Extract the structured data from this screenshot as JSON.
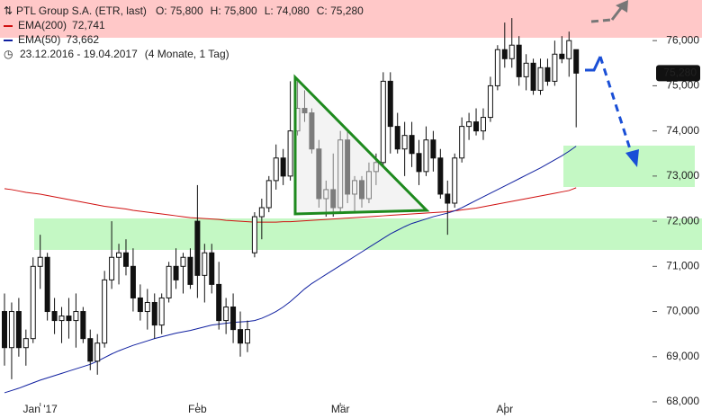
{
  "chart_data": {
    "type": "candlestick",
    "header": {
      "title": "PTL Group S.A. (ETR, last)",
      "ohlc": [
        "O: 75,800",
        "H: 75,800",
        "L: 74,080",
        "C: 75,280"
      ],
      "date_range": "23.12.2016 - 19.04.2017",
      "period": "(4 Monate, 1 Tag)"
    },
    "categories": [
      null,
      null,
      null,
      null,
      null,
      "Jan '17",
      null,
      null,
      null,
      null,
      null,
      null,
      null,
      null,
      null,
      null,
      null,
      null,
      null,
      null,
      null,
      null,
      null,
      null,
      null,
      null,
      null,
      "Feb",
      null,
      null,
      null,
      null,
      null,
      null,
      null,
      null,
      null,
      null,
      null,
      null,
      null,
      null,
      null,
      null,
      null,
      null,
      null,
      "Mär",
      null,
      null,
      null,
      null,
      null,
      null,
      null,
      null,
      null,
      null,
      null,
      null,
      null,
      null,
      null,
      null,
      null,
      null,
      null,
      null,
      null,
      null,
      "Apr",
      null,
      null,
      null,
      null,
      null,
      null,
      null,
      null,
      null,
      null
    ],
    "open": [
      70.0,
      69.2,
      70.0,
      69.2,
      69.4,
      71.0,
      71.2,
      70.0,
      69.8,
      69.9,
      69.8,
      70.0,
      69.4,
      68.9,
      69.3,
      70.7,
      71.2,
      71.3,
      71.0,
      70.3,
      70.0,
      70.2,
      69.7,
      70.3,
      71.0,
      71.0,
      71.2,
      72.0,
      70.8,
      71.3,
      70.6,
      69.8,
      70.1,
      69.6,
      69.3,
      71.3,
      72.1,
      72.3,
      72.9,
      73.4,
      73.0,
      74.0,
      74.5,
      74.4,
      73.6,
      72.5,
      72.7,
      72.3,
      73.8,
      72.6,
      72.9,
      72.5,
      73.1,
      73.3,
      75.1,
      74.1,
      73.6,
      73.9,
      73.5,
      73.1,
      73.8,
      73.4,
      72.6,
      72.4,
      73.4,
      74.1,
      74.2,
      74.0,
      74.3,
      75.0,
      75.8,
      75.6,
      75.9,
      75.2,
      75.5,
      74.9,
      75.4,
      75.1,
      75.7,
      75.6,
      75.8
    ],
    "high": [
      70.4,
      70.2,
      70.3,
      69.6,
      71.2,
      71.7,
      71.3,
      70.3,
      70.1,
      70.3,
      70.4,
      70.1,
      69.6,
      69.5,
      70.9,
      72.0,
      71.5,
      71.6,
      71.4,
      70.6,
      70.5,
      70.4,
      70.4,
      71.1,
      71.4,
      71.3,
      71.4,
      72.8,
      71.5,
      71.5,
      71.1,
      70.3,
      70.4,
      70.0,
      69.8,
      72.2,
      72.5,
      73.0,
      73.7,
      73.6,
      75.1,
      75.1,
      74.9,
      74.5,
      73.8,
      72.9,
      73.5,
      74.0,
      74.0,
      73.0,
      73.0,
      73.3,
      73.5,
      75.3,
      75.3,
      74.4,
      74.2,
      74.2,
      73.8,
      74.1,
      74.0,
      73.6,
      72.9,
      73.5,
      74.3,
      74.4,
      74.5,
      74.5,
      75.2,
      75.9,
      76.4,
      76.5,
      76.1,
      75.7,
      75.6,
      75.6,
      75.6,
      76.0,
      76.1,
      76.2,
      75.8
    ],
    "low": [
      68.8,
      68.5,
      69.0,
      68.8,
      69.3,
      70.5,
      69.8,
      69.5,
      69.3,
      69.4,
      69.2,
      69.3,
      68.7,
      68.6,
      69.2,
      70.5,
      70.6,
      70.8,
      70.0,
      69.8,
      69.6,
      69.4,
      69.5,
      70.2,
      70.5,
      70.4,
      70.5,
      70.3,
      70.2,
      70.4,
      69.6,
      69.5,
      69.3,
      69.0,
      69.1,
      71.2,
      71.6,
      72.2,
      72.7,
      72.8,
      72.9,
      73.9,
      74.2,
      73.5,
      72.3,
      72.1,
      72.1,
      72.2,
      72.4,
      72.2,
      72.3,
      72.4,
      72.8,
      73.2,
      73.5,
      73.5,
      73.0,
      73.2,
      72.8,
      73.0,
      73.1,
      72.5,
      71.7,
      72.3,
      73.3,
      73.8,
      73.9,
      73.8,
      74.2,
      74.9,
      75.4,
      75.4,
      75.0,
      74.9,
      74.8,
      74.8,
      75.0,
      75.0,
      75.5,
      75.2,
      74.08
    ],
    "close": [
      69.2,
      70.0,
      69.2,
      69.4,
      71.0,
      71.2,
      70.0,
      69.8,
      69.9,
      69.8,
      70.0,
      69.4,
      68.9,
      69.3,
      70.7,
      71.2,
      71.3,
      71.0,
      70.3,
      70.0,
      70.2,
      69.7,
      70.3,
      71.0,
      70.7,
      71.2,
      70.6,
      70.8,
      71.3,
      70.6,
      69.8,
      70.1,
      69.6,
      69.3,
      69.6,
      72.1,
      72.3,
      72.9,
      73.4,
      73.0,
      74.0,
      74.5,
      74.4,
      73.6,
      72.5,
      72.7,
      72.3,
      73.8,
      72.6,
      72.9,
      72.5,
      73.1,
      73.3,
      75.1,
      74.1,
      73.6,
      73.9,
      73.5,
      73.1,
      73.8,
      73.4,
      72.6,
      72.4,
      73.4,
      74.1,
      74.2,
      74.0,
      74.3,
      75.0,
      75.8,
      75.6,
      75.9,
      75.2,
      75.5,
      74.9,
      75.4,
      75.1,
      75.7,
      75.6,
      76.0,
      75.28
    ],
    "last_label": "75,280",
    "up_color": "#ffffff",
    "down_color": "#111111",
    "series": [
      {
        "name": "EMA(200)",
        "color": "#d01010",
        "value_label": "72,741",
        "values": [
          72.72,
          72.7,
          72.67,
          72.64,
          72.62,
          72.6,
          72.57,
          72.54,
          72.51,
          72.48,
          72.45,
          72.42,
          72.39,
          72.36,
          72.33,
          72.31,
          72.29,
          72.27,
          72.24,
          72.22,
          72.2,
          72.18,
          72.16,
          72.14,
          72.12,
          72.1,
          72.08,
          72.07,
          72.06,
          72.05,
          72.04,
          72.02,
          72.01,
          72.0,
          71.99,
          71.98,
          71.98,
          71.98,
          71.98,
          71.99,
          71.99,
          72.0,
          72.01,
          72.02,
          72.03,
          72.04,
          72.05,
          72.06,
          72.07,
          72.08,
          72.09,
          72.1,
          72.11,
          72.12,
          72.13,
          72.14,
          72.15,
          72.16,
          72.17,
          72.18,
          72.19,
          72.2,
          72.21,
          72.23,
          72.25,
          72.27,
          72.29,
          72.32,
          72.35,
          72.38,
          72.41,
          72.44,
          72.47,
          72.5,
          72.53,
          72.56,
          72.59,
          72.62,
          72.65,
          72.68,
          72.741
        ]
      },
      {
        "name": "EMA(50)",
        "color": "#1020a0",
        "value_label": "73,662",
        "values": [
          68.2,
          68.25,
          68.3,
          68.36,
          68.42,
          68.48,
          68.53,
          68.58,
          68.63,
          68.68,
          68.73,
          68.78,
          68.83,
          68.9,
          68.98,
          69.06,
          69.13,
          69.19,
          69.25,
          69.3,
          69.35,
          69.4,
          69.44,
          69.48,
          69.52,
          69.55,
          69.58,
          69.62,
          69.66,
          69.7,
          69.72,
          69.74,
          69.76,
          69.77,
          69.78,
          69.8,
          69.85,
          69.92,
          70.0,
          70.1,
          70.22,
          70.36,
          70.5,
          70.62,
          70.72,
          70.82,
          70.92,
          71.02,
          71.12,
          71.22,
          71.32,
          71.42,
          71.52,
          71.62,
          71.72,
          71.8,
          71.88,
          71.95,
          72.0,
          72.05,
          72.1,
          72.14,
          72.18,
          72.23,
          72.3,
          72.38,
          72.46,
          72.54,
          72.62,
          72.7,
          72.78,
          72.86,
          72.94,
          73.02,
          73.1,
          73.18,
          73.27,
          73.36,
          73.45,
          73.55,
          73.662
        ]
      }
    ],
    "ylim": [
      67.9,
      76.9
    ],
    "yticks": [
      {
        "value": 68,
        "label": "68,000"
      },
      {
        "value": 69,
        "label": "69,000"
      },
      {
        "value": 70,
        "label": "70,000"
      },
      {
        "value": 71,
        "label": "71,000"
      },
      {
        "value": 72,
        "label": "72,000"
      },
      {
        "value": 73,
        "label": "73,000"
      },
      {
        "value": 74,
        "label": "74,000"
      },
      {
        "value": 75,
        "label": "75,000"
      },
      {
        "value": 76,
        "label": "76,000"
      }
    ]
  }
}
